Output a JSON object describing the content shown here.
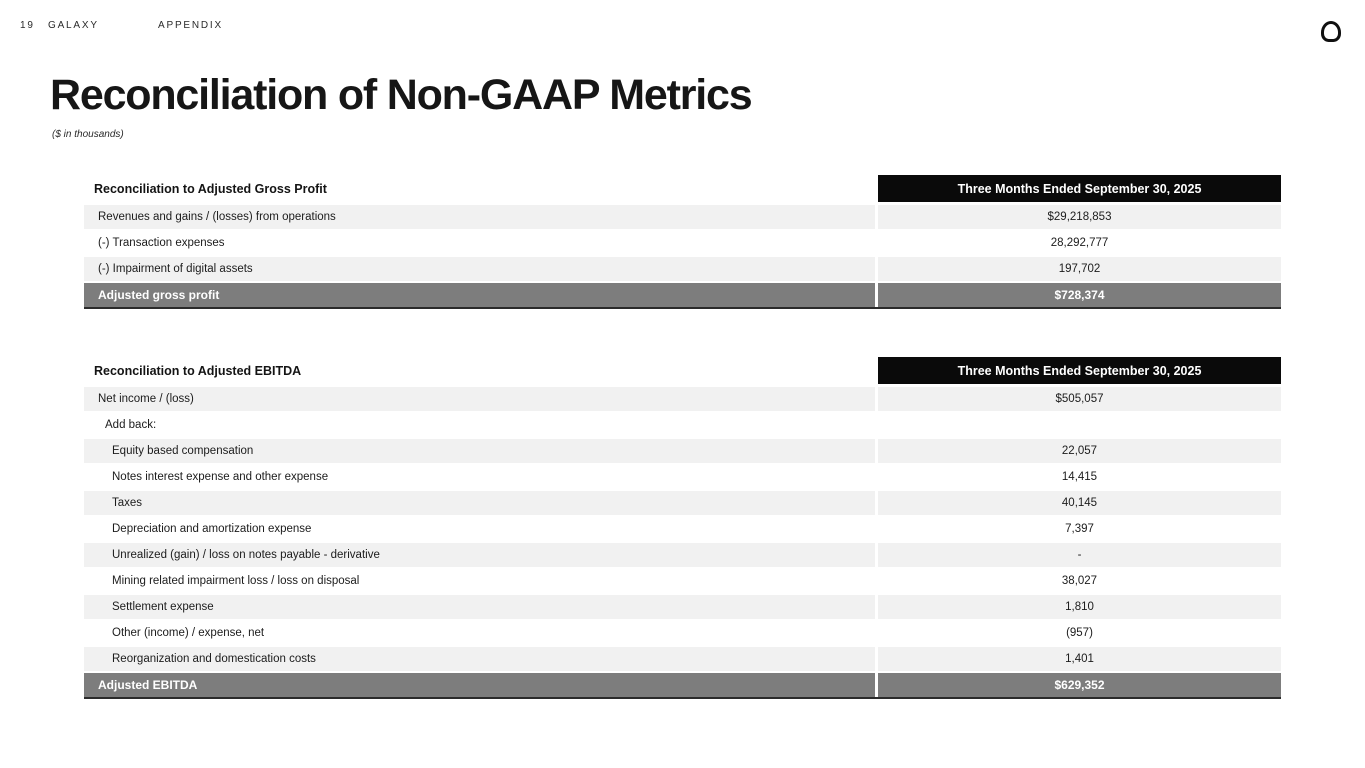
{
  "header": {
    "page_number": "19",
    "brand": "GALAXY",
    "section": "APPENDIX",
    "logo_icon": "galaxy-logo-icon"
  },
  "title": "Reconciliation of Non-GAAP Metrics",
  "subtitle": "($ in thousands)",
  "colors": {
    "period_header_bg": "#0a0a0a",
    "period_header_text": "#ffffff",
    "shaded_row_bg": "#f1f1f1",
    "total_row_bg": "#7d7d7d",
    "total_row_text": "#ffffff",
    "body_text": "#1c1c1c"
  },
  "tables": [
    {
      "header_label": "Reconciliation to Adjusted Gross Profit",
      "period_header": "Three Months Ended September 30, 2025",
      "rows": [
        {
          "label": "Revenues and gains / (losses) from operations",
          "value": "$29,218,853",
          "indent": 1,
          "shaded": true
        },
        {
          "label": "(-) Transaction expenses",
          "value": "28,292,777",
          "indent": 1,
          "shaded": false
        },
        {
          "label": "(-) Impairment of digital assets",
          "value": "197,702",
          "indent": 1,
          "shaded": true
        }
      ],
      "total": {
        "label": "Adjusted gross profit",
        "value": "$728,374"
      }
    },
    {
      "header_label": "Reconciliation to Adjusted EBITDA",
      "period_header": "Three Months Ended September 30, 2025",
      "rows": [
        {
          "label": "Net income / (loss)",
          "value": "$505,057",
          "indent": 1,
          "shaded": true
        },
        {
          "label": "Add back:",
          "value": "",
          "indent": 2,
          "shaded": false
        },
        {
          "label": "Equity based compensation",
          "value": "22,057",
          "indent": 3,
          "shaded": true
        },
        {
          "label": "Notes interest expense and other expense",
          "value": "14,415",
          "indent": 3,
          "shaded": false
        },
        {
          "label": "Taxes",
          "value": "40,145",
          "indent": 3,
          "shaded": true
        },
        {
          "label": "Depreciation and amortization expense",
          "value": "7,397",
          "indent": 3,
          "shaded": false
        },
        {
          "label": "Unrealized (gain) / loss on notes payable - derivative",
          "value": "-",
          "indent": 3,
          "shaded": true
        },
        {
          "label": "Mining related impairment loss / loss on disposal",
          "value": "38,027",
          "indent": 3,
          "shaded": false
        },
        {
          "label": "Settlement expense",
          "value": "1,810",
          "indent": 3,
          "shaded": true
        },
        {
          "label": "Other (income) / expense, net",
          "value": "(957)",
          "indent": 3,
          "shaded": false
        },
        {
          "label": "Reorganization and domestication costs",
          "value": "1,401",
          "indent": 3,
          "shaded": true
        }
      ],
      "total": {
        "label": "Adjusted EBITDA",
        "value": "$629,352"
      }
    }
  ]
}
